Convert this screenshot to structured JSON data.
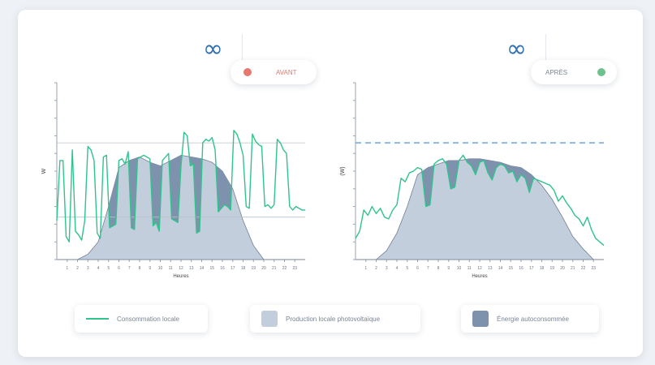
{
  "colors": {
    "consumption": "#2fc48c",
    "production": "#c3cedd",
    "overlap": "#7f92ad",
    "accent_blue": "#2f6fb0",
    "before_dot": "#e8776f",
    "after_dot": "#6fc28f"
  },
  "icons": {
    "link": "infinity-icon"
  },
  "toggles": {
    "before": {
      "label": "AVANT",
      "dot": "red"
    },
    "after": {
      "label": "APRÈS",
      "dot": "green"
    }
  },
  "legend": {
    "consumption": "Consommation locale",
    "production": "Production locale photovoltaïque",
    "overlap": "Énergie autoconsommée"
  },
  "chart_data": [
    {
      "type": "area",
      "title": "AVANT",
      "xlabel": "Heures",
      "ylabel": "W",
      "x": [
        0,
        1,
        2,
        3,
        4,
        5,
        6,
        7,
        8,
        9,
        10,
        11,
        12,
        13,
        14,
        15,
        16,
        17,
        18,
        19,
        20,
        21,
        22,
        23,
        24
      ],
      "x_ticks": [
        "1",
        "2",
        "3",
        "4",
        "5",
        "6",
        "7",
        "8",
        "9",
        "10",
        "11",
        "12",
        "13",
        "14",
        "15",
        "16",
        "17",
        "18",
        "19",
        "20",
        "21",
        "22",
        "23"
      ],
      "ylim": [
        0,
        10
      ],
      "reference_lines": [
        6.6,
        2.4
      ],
      "series": [
        {
          "kind": "production",
          "values": [
            0,
            0,
            0,
            0.3,
            1,
            3,
            5.2,
            5.6,
            5.8,
            5.5,
            5.3,
            5.6,
            5.9,
            5.8,
            5.7,
            5.5,
            5,
            4,
            2.2,
            0.8,
            0,
            0,
            0,
            0,
            0
          ]
        },
        {
          "kind": "consumption",
          "x": [
            0,
            0.3,
            0.6,
            0.9,
            1.2,
            1.5,
            1.8,
            2.1,
            2.4,
            2.7,
            3,
            3.3,
            3.6,
            3.9,
            4.2,
            4.5,
            4.8,
            5.1,
            5.4,
            5.7,
            6,
            6.3,
            6.6,
            6.9,
            7.2,
            7.5,
            7.8,
            8.1,
            8.4,
            8.7,
            9,
            9.3,
            9.6,
            9.9,
            10.2,
            10.5,
            10.8,
            11.1,
            11.4,
            11.7,
            12,
            12.3,
            12.6,
            12.9,
            13.2,
            13.5,
            13.8,
            14.1,
            14.4,
            14.7,
            15,
            15.3,
            15.6,
            15.9,
            16.2,
            16.5,
            16.8,
            17.1,
            17.4,
            17.7,
            18,
            18.3,
            18.6,
            18.9,
            19.2,
            19.5,
            19.8,
            20.1,
            20.4,
            20.7,
            21,
            21.3,
            21.6,
            21.9,
            22.2,
            22.5,
            22.8,
            23.1,
            23.4,
            23.7,
            24
          ],
          "values": [
            2.2,
            5.6,
            5.6,
            1.3,
            1.0,
            6.2,
            1.6,
            1.4,
            1.1,
            2.2,
            6.4,
            6.2,
            5.6,
            1.5,
            1.2,
            5.8,
            5.9,
            1.8,
            1.9,
            2.0,
            5.6,
            5.7,
            5.4,
            6.1,
            1.8,
            1.7,
            5.7,
            5.8,
            5.9,
            5.8,
            5.7,
            1.9,
            2.1,
            1.6,
            5.6,
            5.8,
            6.0,
            2.3,
            2.2,
            2.1,
            5.3,
            7.2,
            7.0,
            5.3,
            5.4,
            1.5,
            1.6,
            6.6,
            6.8,
            6.7,
            6.9,
            6.2,
            2.7,
            2.9,
            3.1,
            3.0,
            2.8,
            7.3,
            7.1,
            6.6,
            5.9,
            3.0,
            2.9,
            7.1,
            6.7,
            6.5,
            6.4,
            3.0,
            3.1,
            2.9,
            3.1,
            6.8,
            6.6,
            6.2,
            6.0,
            3.0,
            2.8,
            3.0,
            2.9,
            2.8,
            2.8
          ]
        }
      ]
    },
    {
      "type": "area",
      "title": "APRÈS",
      "xlabel": "Heures",
      "ylabel": "(W)",
      "x": [
        0,
        1,
        2,
        3,
        4,
        5,
        6,
        7,
        8,
        9,
        10,
        11,
        12,
        13,
        14,
        15,
        16,
        17,
        18,
        19,
        20,
        21,
        22,
        23,
        24
      ],
      "x_ticks": [
        "1",
        "2",
        "3",
        "4",
        "5",
        "6",
        "7",
        "8",
        "9",
        "10",
        "11",
        "12",
        "13",
        "14",
        "15",
        "16",
        "17",
        "18",
        "19",
        "20",
        "21",
        "22",
        "23"
      ],
      "ylim": [
        0,
        10
      ],
      "reference_lines": [
        6.6
      ],
      "series": [
        {
          "kind": "production",
          "values": [
            0,
            0,
            0,
            0.5,
            1.5,
            3,
            4.8,
            5.2,
            5.4,
            5.6,
            5.6,
            5.7,
            5.7,
            5.6,
            5.5,
            5.3,
            5.2,
            4.8,
            4.2,
            3.4,
            2.4,
            1.3,
            0.6,
            0,
            0
          ]
        },
        {
          "kind": "consumption",
          "x": [
            0,
            0.4,
            0.8,
            1.2,
            1.6,
            2,
            2.4,
            2.8,
            3.2,
            3.6,
            4,
            4.4,
            4.8,
            5.2,
            5.6,
            6,
            6.4,
            6.8,
            7.2,
            7.6,
            8,
            8.4,
            8.8,
            9.2,
            9.6,
            10,
            10.4,
            10.8,
            11.2,
            11.6,
            12,
            12.4,
            12.8,
            13.2,
            13.6,
            14,
            14.4,
            14.8,
            15.2,
            15.6,
            16,
            16.4,
            16.8,
            17.2,
            17.6,
            18,
            18.4,
            18.8,
            19.2,
            19.6,
            20,
            20.4,
            20.8,
            21.2,
            21.6,
            22,
            22.4,
            22.8,
            23.2,
            23.6,
            24
          ],
          "values": [
            1.2,
            1.6,
            2.8,
            2.5,
            3.0,
            2.6,
            2.9,
            2.4,
            2.3,
            2.8,
            3.1,
            4.6,
            4.4,
            4.9,
            5.0,
            5.2,
            5.1,
            3.0,
            3.1,
            5.4,
            5.6,
            5.7,
            5.4,
            4.0,
            4.1,
            5.6,
            5.9,
            5.5,
            5.3,
            4.8,
            5.5,
            5.6,
            4.9,
            4.5,
            5.2,
            5.4,
            5.3,
            4.9,
            5.0,
            4.4,
            4.8,
            4.6,
            3.8,
            4.6,
            4.5,
            4.4,
            4.3,
            4.2,
            3.9,
            3.3,
            3.6,
            3.2,
            2.9,
            2.5,
            2.3,
            1.9,
            2.4,
            1.7,
            1.2,
            1.0,
            0.8
          ]
        }
      ]
    }
  ]
}
